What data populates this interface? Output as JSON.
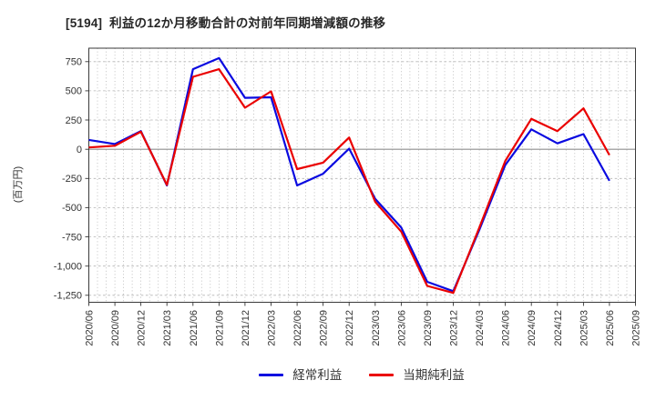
{
  "page": {
    "background": "#ffffff"
  },
  "chart_data": {
    "type": "line",
    "title": "[5194]  利益の12か月移動合計の対前年同期増減額の推移",
    "ylabel": "(百万円)",
    "categories": [
      "2020/06",
      "2020/09",
      "2020/12",
      "2021/03",
      "2021/06",
      "2021/09",
      "2021/12",
      "2022/03",
      "2022/06",
      "2022/09",
      "2022/12",
      "2023/03",
      "2023/06",
      "2023/09",
      "2023/12",
      "2024/03",
      "2024/06",
      "2024/09",
      "2024/12",
      "2025/03",
      "2025/06",
      "2025/09"
    ],
    "series": [
      {
        "name": "経常利益",
        "color": "#0a0ae0",
        "values": [
          80,
          45,
          155,
          -310,
          685,
          780,
          440,
          445,
          -310,
          -210,
          5,
          -425,
          -670,
          -1135,
          -1215,
          -690,
          -135,
          170,
          50,
          130,
          -270,
          null
        ]
      },
      {
        "name": "当期純利益",
        "color": "#ea0000",
        "values": [
          15,
          30,
          150,
          -305,
          620,
          685,
          355,
          495,
          -170,
          -115,
          100,
          -450,
          -705,
          -1170,
          -1230,
          -670,
          -100,
          260,
          155,
          350,
          -50,
          null
        ]
      }
    ],
    "ylim": [
      -1310,
      865
    ],
    "yticks": [
      750,
      500,
      250,
      0,
      -250,
      -500,
      -750,
      -1000,
      -1250
    ],
    "grid": true,
    "x_minor_per_interval": 3,
    "legend_position": "bottom",
    "colors": {
      "grid": "#b3b3b3",
      "zero_line": "#8f8f8f",
      "axis_box": "#3a3a3a",
      "tick_text": "#333333",
      "title_text": "#262626"
    }
  }
}
